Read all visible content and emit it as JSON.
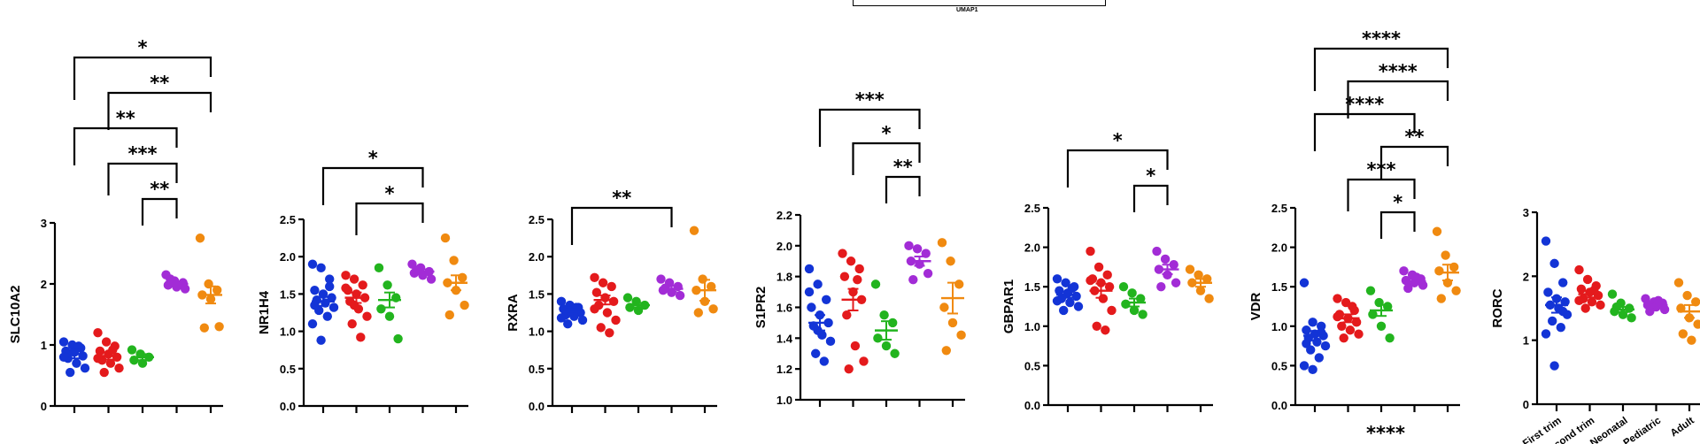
{
  "umap_label": "UMAP1",
  "bottom_annotation": "****",
  "groups": [
    "First trim",
    "Second trim",
    "Neonatal",
    "Pediatric",
    "Adult"
  ],
  "group_colors": [
    "#1334d6",
    "#e41a1c",
    "#22b41e",
    "#a22cd6",
    "#f08a10"
  ],
  "chart_data": [
    {
      "type": "scatter",
      "ylabel": "SLC10A2",
      "ylim": [
        0,
        3
      ],
      "yticks": [
        "0",
        "1",
        "2",
        "3"
      ],
      "groups": [
        {
          "mean": 0.85,
          "sem": 0.07,
          "points": [
            1.05,
            1.0,
            0.95,
            0.9,
            0.88,
            0.82,
            0.78,
            0.7,
            0.62,
            0.55,
            0.98,
            0.8
          ]
        },
        {
          "mean": 0.82,
          "sem": 0.06,
          "points": [
            1.2,
            1.05,
            0.98,
            0.9,
            0.85,
            0.8,
            0.75,
            0.7,
            0.62,
            0.55,
            0.92,
            0.78
          ]
        },
        {
          "mean": 0.8,
          "sem": 0.05,
          "points": [
            0.92,
            0.85,
            0.8,
            0.75,
            0.7
          ]
        },
        {
          "mean": 2.0,
          "sem": 0.04,
          "points": [
            2.15,
            2.05,
            2.02,
            1.98,
            1.95,
            1.92,
            2.08
          ]
        },
        {
          "mean": 1.82,
          "sem": 0.14,
          "points": [
            2.75,
            2.0,
            1.9,
            1.82,
            1.75,
            1.3,
            1.28
          ]
        }
      ],
      "comparisons": [
        {
          "from": 0,
          "to": 4,
          "label": "*"
        },
        {
          "from": 1,
          "to": 4,
          "label": "**"
        },
        {
          "from": 0,
          "to": 3,
          "label": "**"
        },
        {
          "from": 1,
          "to": 3,
          "label": "***"
        },
        {
          "from": 2,
          "to": 3,
          "label": "**"
        }
      ]
    },
    {
      "type": "scatter",
      "ylabel": "NR1H4",
      "ylim": [
        0,
        2.5
      ],
      "yticks": [
        "0.0",
        "0.5",
        "1.0",
        "1.5",
        "2.0",
        "2.5"
      ],
      "groups": [
        {
          "mean": 1.4,
          "sem": 0.06,
          "points": [
            1.9,
            1.85,
            1.7,
            1.55,
            1.5,
            1.45,
            1.42,
            1.38,
            1.32,
            1.28,
            1.2,
            1.1,
            0.88,
            1.6,
            1.35
          ]
        },
        {
          "mean": 1.45,
          "sem": 0.07,
          "points": [
            1.75,
            1.7,
            1.62,
            1.55,
            1.5,
            1.45,
            1.4,
            1.3,
            1.2,
            1.1,
            0.92,
            1.58,
            1.35
          ]
        },
        {
          "mean": 1.42,
          "sem": 0.1,
          "points": [
            1.85,
            1.62,
            1.45,
            1.3,
            1.2,
            0.9
          ]
        },
        {
          "mean": 1.8,
          "sem": 0.03,
          "points": [
            1.9,
            1.85,
            1.8,
            1.78,
            1.75,
            1.7,
            1.82
          ]
        },
        {
          "mean": 1.65,
          "sem": 0.1,
          "points": [
            2.25,
            1.95,
            1.72,
            1.65,
            1.55,
            1.35,
            1.22
          ]
        }
      ],
      "comparisons": [
        {
          "from": 0,
          "to": 3,
          "label": "*"
        },
        {
          "from": 1,
          "to": 3,
          "label": "*"
        }
      ]
    },
    {
      "type": "scatter",
      "ylabel": "RXRA",
      "ylim": [
        0,
        2.5
      ],
      "yticks": [
        "0.0",
        "0.5",
        "1.0",
        "1.5",
        "2.0",
        "2.5"
      ],
      "groups": [
        {
          "mean": 1.27,
          "sem": 0.03,
          "points": [
            1.4,
            1.35,
            1.32,
            1.3,
            1.28,
            1.25,
            1.22,
            1.2,
            1.15,
            1.1,
            1.32,
            1.18,
            1.27
          ]
        },
        {
          "mean": 1.42,
          "sem": 0.06,
          "points": [
            1.72,
            1.65,
            1.6,
            1.52,
            1.45,
            1.4,
            1.35,
            1.25,
            1.15,
            1.05,
            0.98,
            1.3
          ]
        },
        {
          "mean": 1.35,
          "sem": 0.03,
          "points": [
            1.45,
            1.4,
            1.35,
            1.32,
            1.28
          ]
        },
        {
          "mean": 1.57,
          "sem": 0.04,
          "points": [
            1.7,
            1.65,
            1.6,
            1.55,
            1.52,
            1.48,
            1.58
          ]
        },
        {
          "mean": 1.55,
          "sem": 0.14,
          "points": [
            2.35,
            1.7,
            1.6,
            1.55,
            1.4,
            1.3,
            1.25
          ]
        }
      ],
      "comparisons": [
        {
          "from": 0,
          "to": 3,
          "label": "**"
        }
      ]
    },
    {
      "type": "scatter",
      "ylabel": "S1PR2",
      "ylim": [
        1.0,
        2.2
      ],
      "yticks": [
        "1.0",
        "1.2",
        "1.4",
        "1.6",
        "1.8",
        "2.0",
        "2.2"
      ],
      "groups": [
        {
          "mean": 1.5,
          "sem": 0.05,
          "points": [
            1.85,
            1.75,
            1.65,
            1.6,
            1.55,
            1.5,
            1.48,
            1.42,
            1.38,
            1.3,
            1.25,
            1.7,
            1.45
          ]
        },
        {
          "mean": 1.65,
          "sem": 0.07,
          "points": [
            1.95,
            1.9,
            1.85,
            1.8,
            1.7,
            1.65,
            1.55,
            1.35,
            1.25,
            1.2,
            1.78
          ]
        },
        {
          "mean": 1.45,
          "sem": 0.06,
          "points": [
            1.75,
            1.55,
            1.5,
            1.4,
            1.35,
            1.3
          ]
        },
        {
          "mean": 1.9,
          "sem": 0.03,
          "points": [
            2.0,
            1.98,
            1.95,
            1.9,
            1.88,
            1.82,
            1.78
          ]
        },
        {
          "mean": 1.66,
          "sem": 0.1,
          "points": [
            2.02,
            1.9,
            1.75,
            1.6,
            1.5,
            1.42,
            1.32
          ]
        }
      ],
      "comparisons": [
        {
          "from": 0,
          "to": 3,
          "label": "***"
        },
        {
          "from": 1,
          "to": 3,
          "label": "*"
        },
        {
          "from": 2,
          "to": 3,
          "label": "**"
        }
      ]
    },
    {
      "type": "scatter",
      "ylabel": "GBPAR1",
      "ylim": [
        0,
        2.5
      ],
      "yticks": [
        "0.0",
        "0.5",
        "1.0",
        "1.5",
        "2.0",
        "2.5"
      ],
      "groups": [
        {
          "mean": 1.4,
          "sem": 0.04,
          "points": [
            1.6,
            1.55,
            1.5,
            1.45,
            1.42,
            1.38,
            1.35,
            1.3,
            1.25,
            1.2,
            1.48,
            1.32
          ]
        },
        {
          "mean": 1.45,
          "sem": 0.09,
          "points": [
            1.95,
            1.75,
            1.65,
            1.6,
            1.55,
            1.5,
            1.45,
            1.35,
            1.2,
            1.0,
            0.95,
            1.58
          ]
        },
        {
          "mean": 1.3,
          "sem": 0.05,
          "points": [
            1.5,
            1.42,
            1.35,
            1.28,
            1.2,
            1.15
          ]
        },
        {
          "mean": 1.72,
          "sem": 0.06,
          "points": [
            1.95,
            1.85,
            1.78,
            1.72,
            1.65,
            1.55,
            1.5
          ]
        },
        {
          "mean": 1.55,
          "sem": 0.05,
          "points": [
            1.72,
            1.65,
            1.6,
            1.55,
            1.45,
            1.35
          ]
        }
      ],
      "comparisons": [
        {
          "from": 0,
          "to": 3,
          "label": "*"
        },
        {
          "from": 2,
          "to": 3,
          "label": "*"
        }
      ]
    },
    {
      "type": "scatter",
      "ylabel": "VDR",
      "ylim": [
        0,
        2.5
      ],
      "yticks": [
        "0.0",
        "0.5",
        "1.0",
        "1.5",
        "2.0",
        "2.5"
      ],
      "groups": [
        {
          "mean": 0.88,
          "sem": 0.06,
          "points": [
            1.55,
            1.05,
            1.0,
            0.95,
            0.9,
            0.88,
            0.85,
            0.8,
            0.75,
            0.7,
            0.6,
            0.5,
            0.45,
            0.92,
            0.78
          ]
        },
        {
          "mean": 1.1,
          "sem": 0.05,
          "points": [
            1.35,
            1.3,
            1.2,
            1.15,
            1.1,
            1.05,
            1.0,
            0.95,
            0.9,
            0.85,
            1.25,
            1.12
          ]
        },
        {
          "mean": 1.2,
          "sem": 0.07,
          "points": [
            1.45,
            1.3,
            1.25,
            1.15,
            1.0,
            0.85
          ]
        },
        {
          "mean": 1.57,
          "sem": 0.03,
          "points": [
            1.7,
            1.65,
            1.6,
            1.58,
            1.55,
            1.52,
            1.48,
            1.62
          ]
        },
        {
          "mean": 1.68,
          "sem": 0.1,
          "points": [
            2.2,
            1.9,
            1.75,
            1.7,
            1.55,
            1.45,
            1.35
          ]
        }
      ],
      "comparisons": [
        {
          "from": 0,
          "to": 4,
          "label": "****"
        },
        {
          "from": 1,
          "to": 4,
          "label": "****"
        },
        {
          "from": 0,
          "to": 3,
          "label": "****"
        },
        {
          "from": 2,
          "to": 4,
          "label": "**"
        },
        {
          "from": 1,
          "to": 3,
          "label": "***"
        },
        {
          "from": 2,
          "to": 3,
          "label": "*"
        }
      ]
    },
    {
      "type": "scatter",
      "ylabel": "RORC",
      "ylim": [
        0,
        3
      ],
      "yticks": [
        "0",
        "1",
        "2",
        "3"
      ],
      "xticklabels": [
        "First trim",
        "Second trim",
        "Neonatal",
        "Pediatric",
        "Adult"
      ],
      "groups": [
        {
          "mean": 1.55,
          "sem": 0.12,
          "points": [
            2.55,
            2.2,
            1.9,
            1.75,
            1.65,
            1.6,
            1.55,
            1.5,
            1.4,
            1.3,
            1.2,
            1.1,
            0.6,
            1.45
          ]
        },
        {
          "mean": 1.72,
          "sem": 0.05,
          "points": [
            2.1,
            1.95,
            1.85,
            1.8,
            1.75,
            1.7,
            1.65,
            1.6,
            1.55,
            1.5,
            1.78,
            1.62
          ]
        },
        {
          "mean": 1.48,
          "sem": 0.04,
          "points": [
            1.72,
            1.58,
            1.5,
            1.45,
            1.4,
            1.35,
            1.52
          ]
        },
        {
          "mean": 1.55,
          "sem": 0.03,
          "points": [
            1.65,
            1.6,
            1.58,
            1.55,
            1.52,
            1.48,
            1.45,
            1.62
          ]
        },
        {
          "mean": 1.45,
          "sem": 0.1,
          "points": [
            1.9,
            1.7,
            1.6,
            1.5,
            1.35,
            1.25,
            1.1,
            1.0
          ]
        }
      ],
      "comparisons": []
    }
  ]
}
